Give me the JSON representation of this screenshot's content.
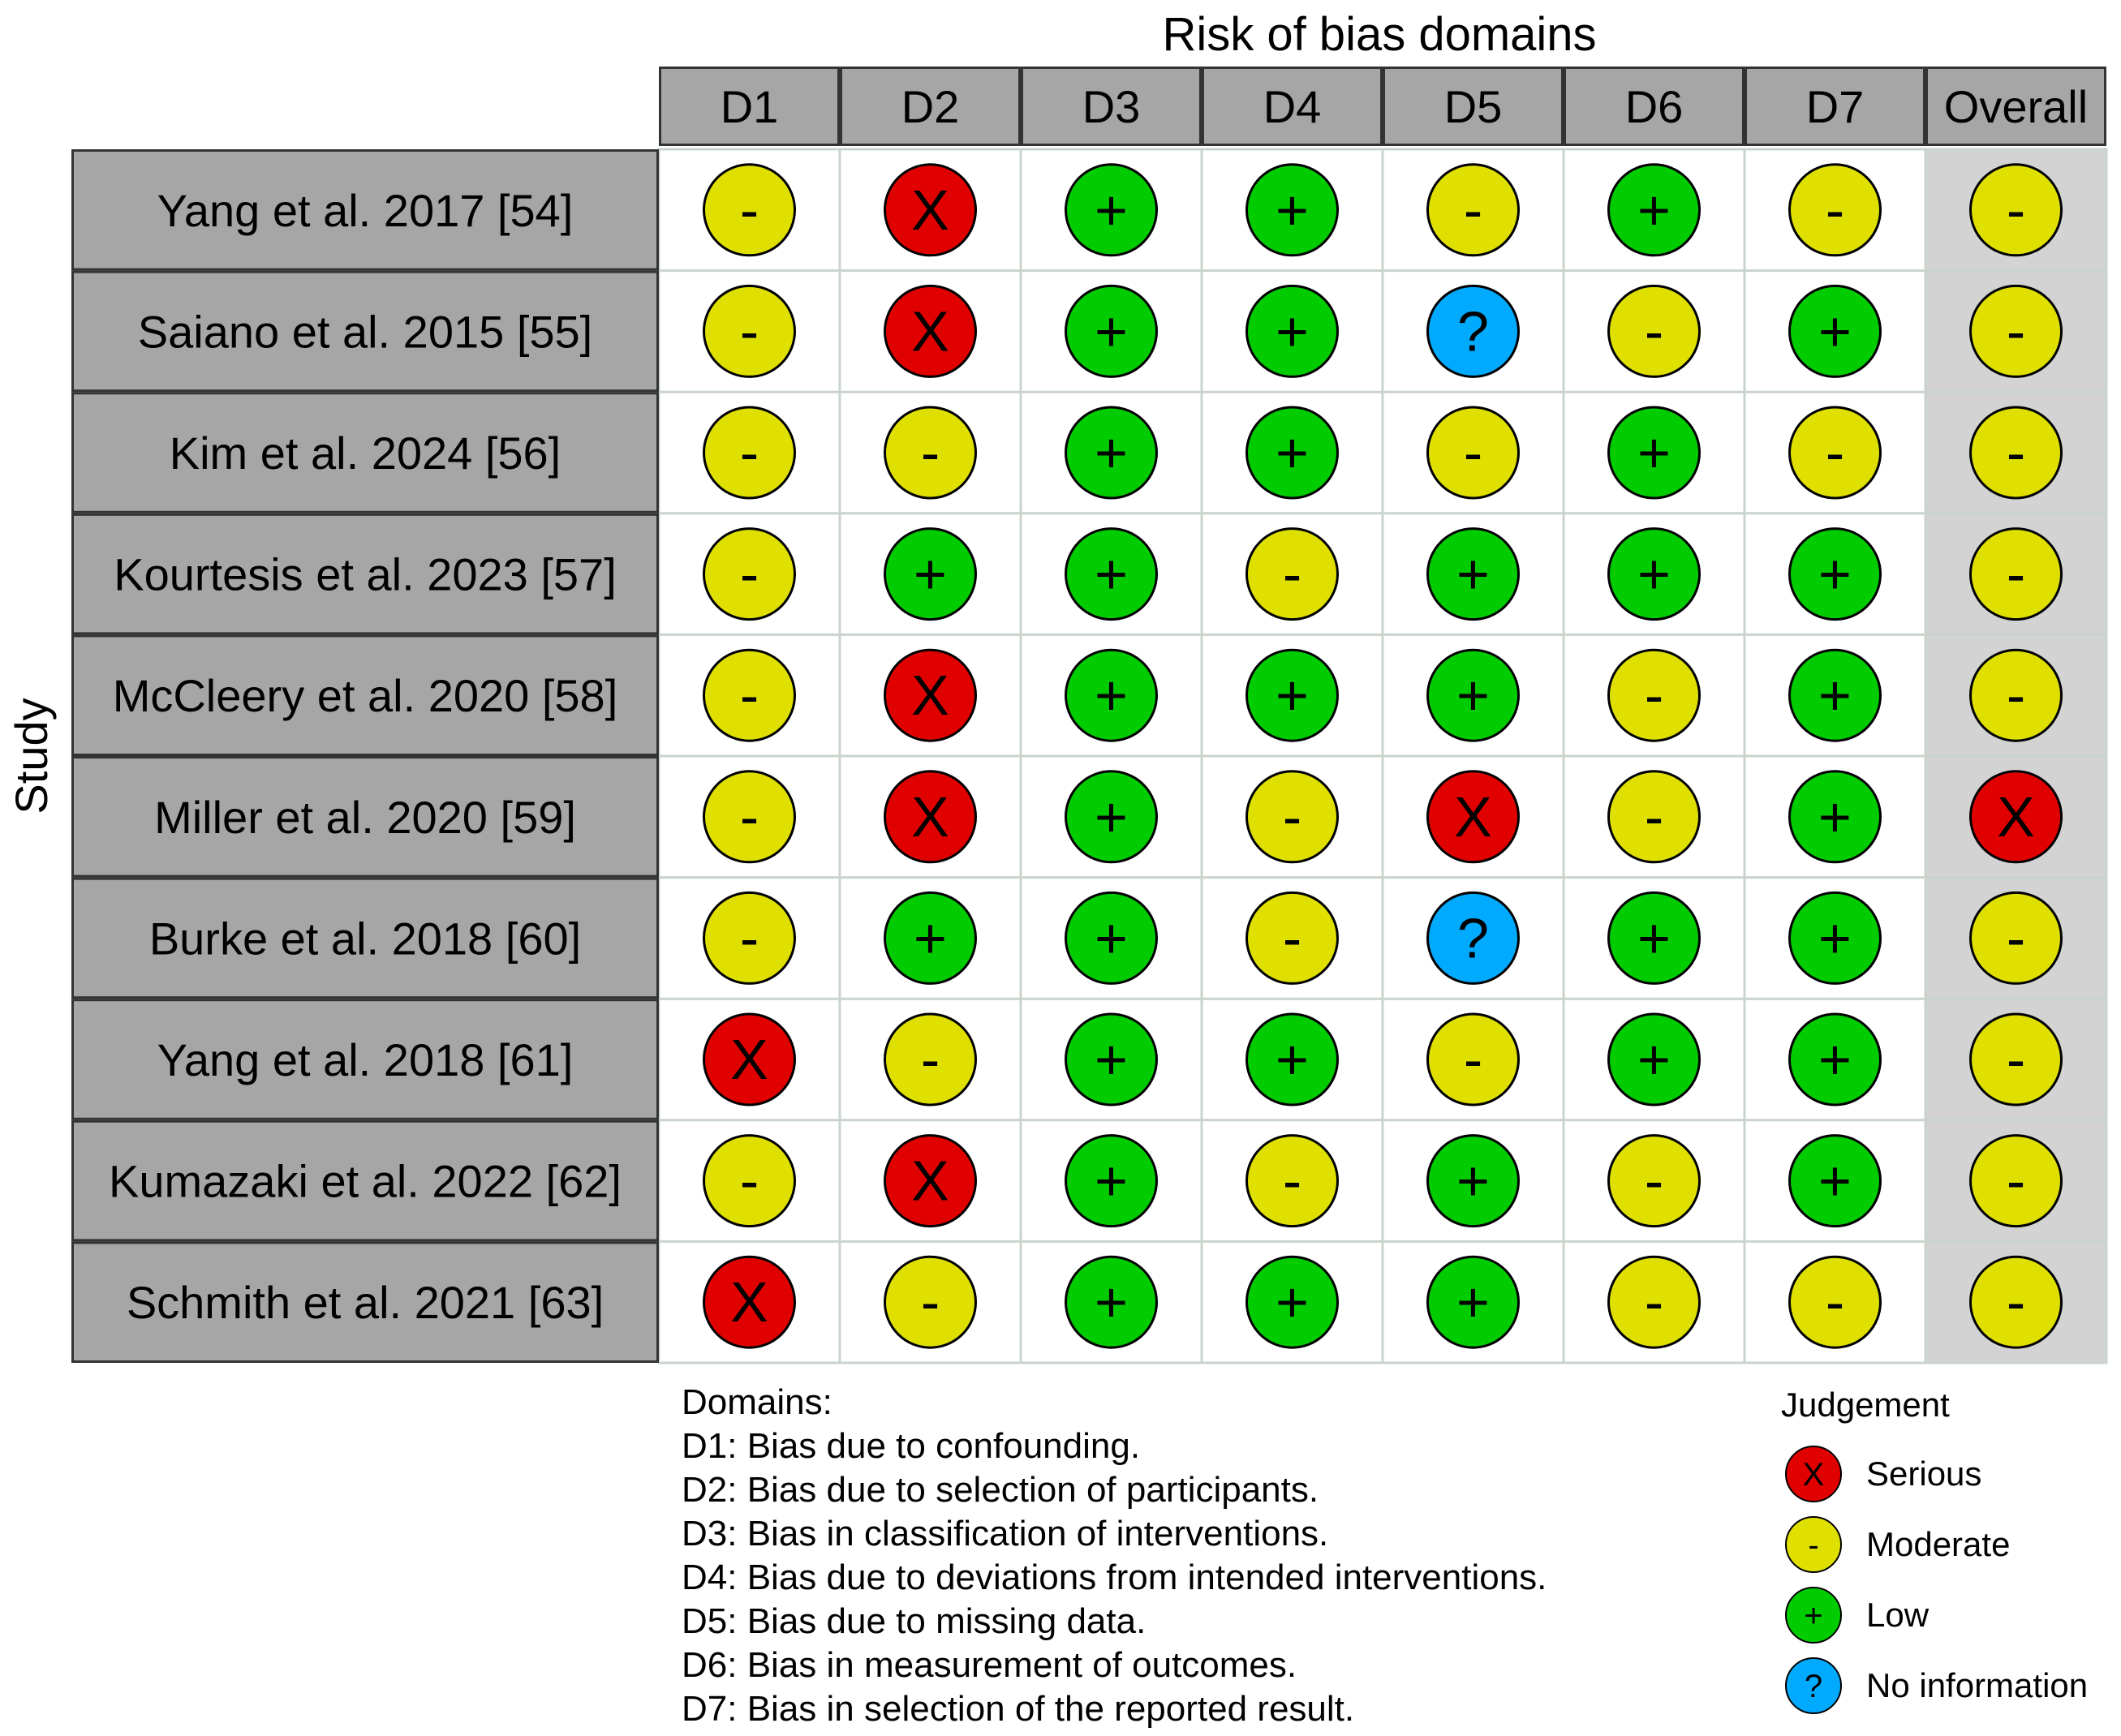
{
  "chart_data": {
    "type": "table",
    "title": "Risk of bias domains",
    "ylabel": "Study",
    "columns": [
      "D1",
      "D2",
      "D3",
      "D4",
      "D5",
      "D6",
      "D7",
      "Overall"
    ],
    "studies": [
      {
        "name": "Yang et al. 2017 [54]",
        "judgements": [
          "moderate",
          "serious",
          "low",
          "low",
          "moderate",
          "low",
          "moderate",
          "moderate"
        ]
      },
      {
        "name": "Saiano et al. 2015 [55]",
        "judgements": [
          "moderate",
          "serious",
          "low",
          "low",
          "no_information",
          "moderate",
          "low",
          "moderate"
        ]
      },
      {
        "name": "Kim et al. 2024 [56]",
        "judgements": [
          "moderate",
          "moderate",
          "low",
          "low",
          "moderate",
          "low",
          "moderate",
          "moderate"
        ]
      },
      {
        "name": "Kourtesis et al. 2023 [57]",
        "judgements": [
          "moderate",
          "low",
          "low",
          "moderate",
          "low",
          "low",
          "low",
          "moderate"
        ]
      },
      {
        "name": "McCleery et al. 2020 [58]",
        "judgements": [
          "moderate",
          "serious",
          "low",
          "low",
          "low",
          "moderate",
          "low",
          "moderate"
        ]
      },
      {
        "name": "Miller et al. 2020 [59]",
        "judgements": [
          "moderate",
          "serious",
          "low",
          "moderate",
          "serious",
          "moderate",
          "low",
          "serious"
        ]
      },
      {
        "name": "Burke et al. 2018 [60]",
        "judgements": [
          "moderate",
          "low",
          "low",
          "moderate",
          "no_information",
          "low",
          "low",
          "moderate"
        ]
      },
      {
        "name": "Yang et al. 2018 [61]",
        "judgements": [
          "serious",
          "moderate",
          "low",
          "low",
          "moderate",
          "low",
          "low",
          "moderate"
        ]
      },
      {
        "name": "Kumazaki et al. 2022 [62]",
        "judgements": [
          "moderate",
          "serious",
          "low",
          "moderate",
          "low",
          "moderate",
          "low",
          "moderate"
        ]
      },
      {
        "name": "Schmith et al. 2021 [63]",
        "judgements": [
          "serious",
          "moderate",
          "low",
          "low",
          "low",
          "moderate",
          "moderate",
          "moderate"
        ]
      }
    ],
    "judgement_styles": {
      "serious": {
        "symbol": "X",
        "color": "#e00000"
      },
      "moderate": {
        "symbol": "-",
        "color": "#e0e000"
      },
      "low": {
        "symbol": "+",
        "color": "#00cc00"
      },
      "no_information": {
        "symbol": "?",
        "color": "#00aaff"
      }
    },
    "domains_title": "Domains:",
    "domains": [
      "D1: Bias due to confounding.",
      "D2: Bias due to selection of participants.",
      "D3: Bias in classification of interventions.",
      "D4: Bias due to deviations from intended interventions.",
      "D5: Bias due to missing data.",
      "D6: Bias in measurement of outcomes.",
      "D7: Bias in selection of the reported result."
    ],
    "legend_title": "Judgement",
    "legend": [
      {
        "key": "serious",
        "label": "Serious"
      },
      {
        "key": "moderate",
        "label": "Moderate"
      },
      {
        "key": "low",
        "label": "Low"
      },
      {
        "key": "no_information",
        "label": "No information"
      }
    ],
    "colors": {
      "header_fill": "#a6a6a6",
      "overall_fill": "#d3d3d3",
      "grid_line": "#c8d4cc",
      "border": "#333333"
    }
  }
}
